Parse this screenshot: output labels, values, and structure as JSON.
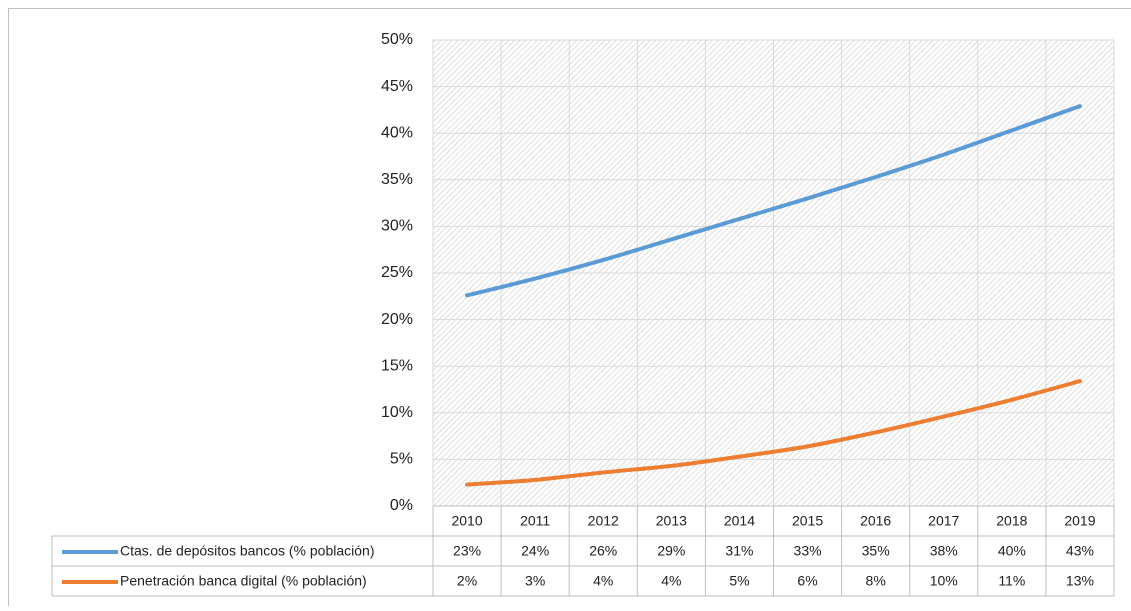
{
  "chart_data": {
    "type": "line",
    "categories": [
      "2010",
      "2011",
      "2012",
      "2013",
      "2014",
      "2015",
      "2016",
      "2017",
      "2018",
      "2019"
    ],
    "series": [
      {
        "name": "Ctas. de depósitos bancos (% población)",
        "color": "#5b9bd5",
        "values": [
          22.6,
          24.4,
          26.4,
          28.6,
          30.8,
          33.0,
          35.3,
          37.7,
          40.3,
          42.9
        ],
        "value_labels": [
          "23%",
          "24%",
          "26%",
          "29%",
          "31%",
          "33%",
          "35%",
          "38%",
          "40%",
          "43%"
        ]
      },
      {
        "name": "Penetración banca digital (% población)",
        "color": "#ed7d31",
        "values": [
          2.3,
          2.8,
          3.6,
          4.3,
          5.3,
          6.4,
          7.9,
          9.6,
          11.4,
          13.4
        ],
        "value_labels": [
          "2%",
          "3%",
          "4%",
          "4%",
          "5%",
          "6%",
          "8%",
          "10%",
          "11%",
          "13%"
        ]
      }
    ],
    "ylim": [
      0,
      50
    ],
    "yticks": [
      {
        "value": 0,
        "label": "0%"
      },
      {
        "value": 5,
        "label": "5%"
      },
      {
        "value": 10,
        "label": "10%"
      },
      {
        "value": 15,
        "label": "15%"
      },
      {
        "value": 20,
        "label": "20%"
      },
      {
        "value": 25,
        "label": "25%"
      },
      {
        "value": 30,
        "label": "30%"
      },
      {
        "value": 35,
        "label": "35%"
      },
      {
        "value": 40,
        "label": "40%"
      },
      {
        "value": 45,
        "label": "45%"
      },
      {
        "value": 50,
        "label": "50%"
      }
    ],
    "grid": true
  }
}
